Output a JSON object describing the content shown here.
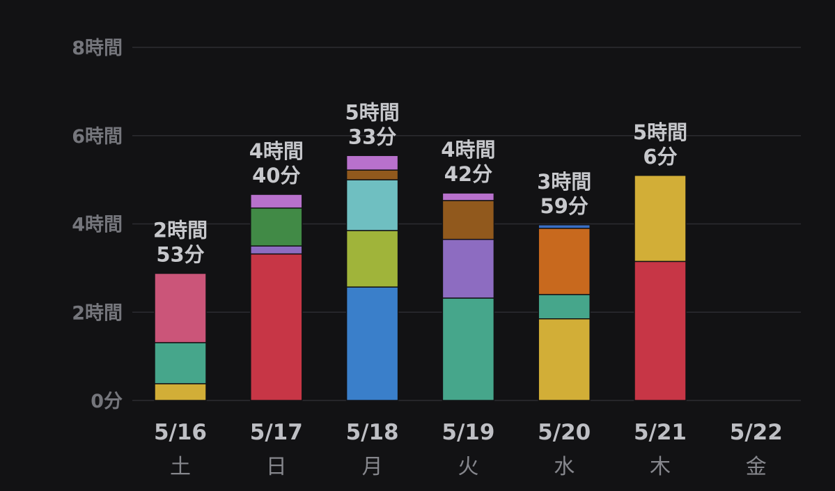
{
  "chart_data": {
    "type": "bar",
    "stacked": true,
    "unit": "hours",
    "grid": true,
    "ylim": [
      0,
      8
    ],
    "yticks": [
      {
        "value": 0,
        "label": "0分"
      },
      {
        "value": 2,
        "label": "2時間"
      },
      {
        "value": 4,
        "label": "4時間"
      },
      {
        "value": 6,
        "label": "6時間"
      },
      {
        "value": 8,
        "label": "8時間"
      }
    ],
    "categories": [
      {
        "date": "5/16",
        "weekday": "土",
        "total_lines": [
          "2時間",
          "53分"
        ]
      },
      {
        "date": "5/17",
        "weekday": "日",
        "total_lines": [
          "4時間",
          "40分"
        ]
      },
      {
        "date": "5/18",
        "weekday": "月",
        "total_lines": [
          "5時間",
          "33分"
        ]
      },
      {
        "date": "5/19",
        "weekday": "火",
        "total_lines": [
          "4時間",
          "42分"
        ]
      },
      {
        "date": "5/20",
        "weekday": "水",
        "total_lines": [
          "3時間",
          "59分"
        ]
      },
      {
        "date": "5/21",
        "weekday": "木",
        "total_lines": [
          "5時間",
          "6分"
        ]
      },
      {
        "date": "5/22",
        "weekday": "金",
        "total_lines": []
      }
    ],
    "stacks": [
      [
        {
          "value": 0.38,
          "color": "#d2ae37"
        },
        {
          "value": 0.93,
          "color": "#46a68b"
        },
        {
          "value": 1.57,
          "color": "#cb5579"
        }
      ],
      [
        {
          "value": 3.32,
          "color": "#c73646"
        },
        {
          "value": 0.18,
          "color": "#8d6cc1"
        },
        {
          "value": 0.86,
          "color": "#418a46"
        },
        {
          "value": 0.31,
          "color": "#b871cc"
        }
      ],
      [
        {
          "value": 2.57,
          "color": "#3a7fca"
        },
        {
          "value": 1.28,
          "color": "#a0b43a"
        },
        {
          "value": 1.15,
          "color": "#6fbfc1"
        },
        {
          "value": 0.22,
          "color": "#91591d"
        },
        {
          "value": 0.33,
          "color": "#b871cc"
        }
      ],
      [
        {
          "value": 2.32,
          "color": "#46a68b"
        },
        {
          "value": 1.33,
          "color": "#8d6cc1"
        },
        {
          "value": 0.88,
          "color": "#91591d"
        },
        {
          "value": 0.17,
          "color": "#b871cc"
        }
      ],
      [
        {
          "value": 1.85,
          "color": "#d2ae37"
        },
        {
          "value": 0.55,
          "color": "#46a68b"
        },
        {
          "value": 1.5,
          "color": "#c8691e"
        },
        {
          "value": 0.08,
          "color": "#3a6fc4"
        }
      ],
      [
        {
          "value": 3.15,
          "color": "#c73646"
        },
        {
          "value": 1.95,
          "color": "#d2ae37"
        }
      ],
      []
    ]
  }
}
